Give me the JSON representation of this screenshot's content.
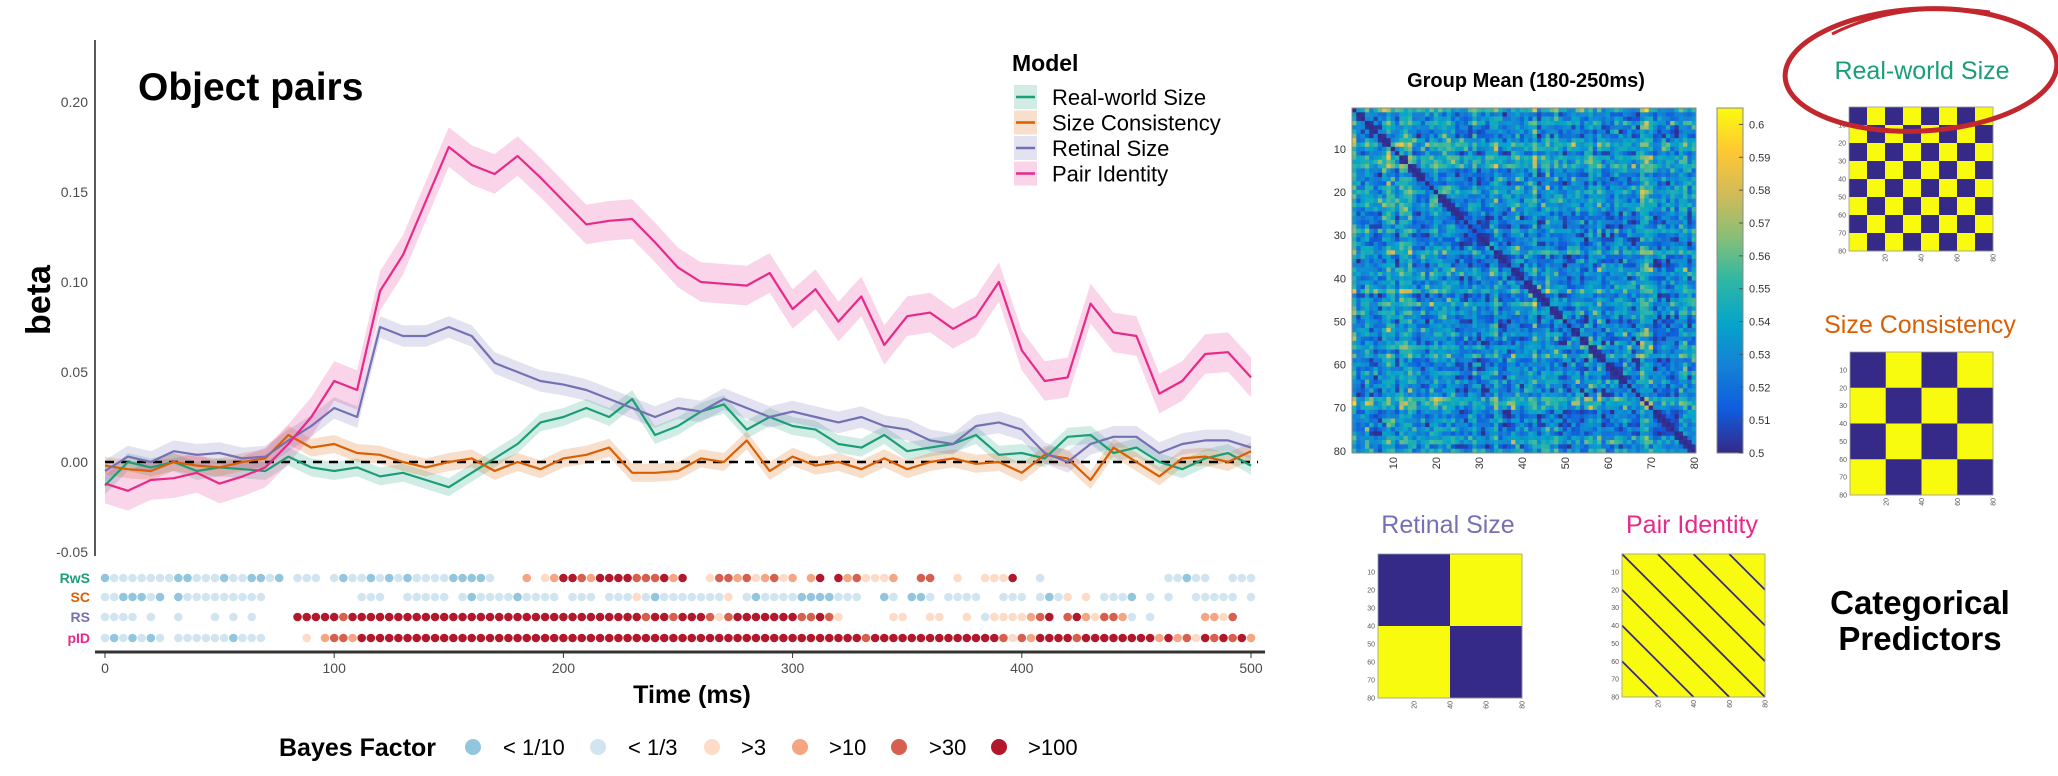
{
  "panel_title": "Object pairs",
  "colors": {
    "Real-world Size": "#1b9e77",
    "Size Consistency": "#d95f02",
    "Retinal Size": "#7570b3",
    "Pair Identity": "#e7298a",
    "highlight_circle": "#c1272d"
  },
  "chart_data": [
    {
      "type": "line",
      "title": "Object pairs",
      "xlabel": "Time (ms)",
      "ylabel": "beta",
      "xlim": [
        0,
        500
      ],
      "ylim": [
        -0.05,
        0.22
      ],
      "xticks": [
        0,
        100,
        200,
        300,
        400,
        500
      ],
      "yticks": [
        -0.05,
        0.0,
        0.05,
        0.1,
        0.15,
        0.2
      ],
      "ytick_labels": [
        "-0.05",
        "0.00",
        "0.05",
        "0.10",
        "0.15",
        "0.20"
      ],
      "reference_line": {
        "y": 0,
        "style": "dashed"
      },
      "legend": {
        "title": "Model",
        "placement": "top-right"
      },
      "x": [
        0,
        10,
        20,
        30,
        40,
        50,
        60,
        70,
        80,
        90,
        100,
        110,
        120,
        130,
        140,
        150,
        160,
        170,
        180,
        190,
        200,
        210,
        220,
        230,
        240,
        250,
        260,
        270,
        280,
        290,
        300,
        310,
        320,
        330,
        340,
        350,
        360,
        370,
        380,
        390,
        400,
        410,
        420,
        430,
        440,
        450,
        460,
        470,
        480,
        490,
        500
      ],
      "series": [
        {
          "name": "Real-world Size",
          "abbr": "RwS",
          "color": "#1b9e77",
          "se": 0.005,
          "values": [
            -0.013,
            0.0,
            -0.003,
            0.0,
            -0.005,
            -0.003,
            -0.004,
            -0.005,
            0.003,
            -0.003,
            -0.005,
            -0.003,
            -0.008,
            -0.006,
            -0.01,
            -0.014,
            -0.006,
            0.002,
            0.01,
            0.022,
            0.025,
            0.03,
            0.025,
            0.035,
            0.015,
            0.02,
            0.028,
            0.032,
            0.018,
            0.025,
            0.02,
            0.018,
            0.01,
            0.008,
            0.015,
            0.006,
            0.008,
            0.01,
            0.015,
            0.004,
            0.005,
            0.002,
            0.014,
            0.015,
            0.005,
            0.008,
            0.0,
            -0.004,
            0.002,
            0.005,
            -0.002
          ]
        },
        {
          "name": "Size Consistency",
          "abbr": "SC",
          "color": "#d95f02",
          "se": 0.005,
          "values": [
            -0.002,
            -0.004,
            -0.005,
            0.0,
            -0.002,
            -0.003,
            0.0,
            0.002,
            0.015,
            0.008,
            0.01,
            0.005,
            0.004,
            0.0,
            -0.003,
            0.0,
            0.002,
            -0.005,
            0.0,
            -0.004,
            0.002,
            0.004,
            0.008,
            -0.006,
            -0.006,
            -0.005,
            0.002,
            0.0,
            0.012,
            -0.005,
            0.003,
            -0.002,
            0.0,
            -0.004,
            0.002,
            -0.004,
            0.0,
            0.002,
            -0.001,
            0.0,
            -0.006,
            0.004,
            0.002,
            -0.01,
            0.008,
            0.0,
            -0.008,
            0.002,
            0.003,
            0.0,
            0.006
          ]
        },
        {
          "name": "Retinal Size",
          "abbr": "RS",
          "color": "#7570b3",
          "se": 0.006,
          "values": [
            -0.005,
            0.003,
            0.0,
            0.006,
            0.004,
            0.005,
            0.002,
            0.003,
            0.012,
            0.02,
            0.03,
            0.025,
            0.075,
            0.07,
            0.07,
            0.075,
            0.07,
            0.055,
            0.05,
            0.045,
            0.043,
            0.04,
            0.035,
            0.03,
            0.025,
            0.03,
            0.028,
            0.035,
            0.03,
            0.025,
            0.028,
            0.025,
            0.022,
            0.025,
            0.02,
            0.018,
            0.012,
            0.01,
            0.02,
            0.022,
            0.018,
            0.005,
            0.0,
            0.01,
            0.014,
            0.014,
            0.005,
            0.01,
            0.012,
            0.012,
            0.008
          ]
        },
        {
          "name": "Pair Identity",
          "abbr": "pID",
          "color": "#e7298a",
          "se": 0.011,
          "values": [
            -0.012,
            -0.016,
            -0.01,
            -0.009,
            -0.006,
            -0.012,
            -0.008,
            -0.003,
            0.01,
            0.025,
            0.045,
            0.04,
            0.095,
            0.115,
            0.145,
            0.175,
            0.165,
            0.16,
            0.17,
            0.158,
            0.145,
            0.132,
            0.134,
            0.135,
            0.122,
            0.108,
            0.1,
            0.099,
            0.098,
            0.105,
            0.085,
            0.096,
            0.078,
            0.092,
            0.065,
            0.081,
            0.083,
            0.074,
            0.081,
            0.1,
            0.062,
            0.045,
            0.047,
            0.088,
            0.072,
            0.07,
            0.038,
            0.045,
            0.06,
            0.061,
            0.047
          ]
        }
      ]
    },
    {
      "type": "bayes_factor_dots",
      "legend_title": "Bayes Factor",
      "categories": [
        "< 1/10",
        "< 1/3",
        ">3",
        ">10",
        ">30",
        ">100"
      ],
      "category_colors": [
        "#92c5de",
        "#d1e5f0",
        "#fddbc7",
        "#f4a582",
        "#d6604d",
        "#b2182b"
      ],
      "time_step_ms": 4,
      "rows": [
        {
          "label": "RwS",
          "color": "#1b9e77",
          "category_index": [
            0,
            1,
            1,
            1,
            1,
            1,
            1,
            1,
            0,
            0,
            1,
            1,
            1,
            0,
            1,
            1,
            0,
            0,
            1,
            0,
            null,
            1,
            1,
            1,
            null,
            1,
            0,
            1,
            1,
            0,
            1,
            0,
            1,
            0,
            1,
            1,
            1,
            1,
            0,
            0,
            0,
            0,
            1,
            null,
            null,
            null,
            3,
            null,
            2,
            3,
            5,
            5,
            4,
            3,
            5,
            5,
            5,
            5,
            4,
            4,
            4,
            5,
            3,
            5,
            null,
            null,
            2,
            4,
            4,
            3,
            4,
            2,
            3,
            4,
            2,
            3,
            null,
            3,
            5,
            null,
            5,
            3,
            4,
            2,
            2,
            2,
            3,
            null,
            null,
            4,
            4,
            null,
            null,
            2,
            null,
            null,
            2,
            2,
            2,
            5,
            null,
            null,
            1,
            null,
            null,
            null,
            null,
            null,
            null,
            null,
            null,
            null,
            null,
            null,
            null,
            null,
            1,
            1,
            0,
            1,
            1,
            null,
            null,
            1,
            1,
            1
          ]
        },
        {
          "label": "SC",
          "color": "#d95f02",
          "category_index": [
            1,
            1,
            0,
            0,
            0,
            1,
            0,
            null,
            0,
            1,
            1,
            1,
            1,
            1,
            1,
            1,
            1,
            1,
            null,
            null,
            null,
            null,
            null,
            null,
            null,
            null,
            null,
            null,
            1,
            1,
            1,
            null,
            null,
            1,
            1,
            1,
            1,
            1,
            null,
            1,
            0,
            1,
            1,
            1,
            1,
            0,
            1,
            1,
            1,
            1,
            null,
            1,
            1,
            1,
            null,
            1,
            1,
            1,
            2,
            1,
            0,
            1,
            1,
            1,
            1,
            1,
            1,
            1,
            2,
            null,
            1,
            0,
            1,
            1,
            1,
            1,
            0,
            0,
            0,
            0,
            1,
            1,
            1,
            null,
            null,
            0,
            1,
            null,
            0,
            0,
            1,
            null,
            1,
            1,
            1,
            1,
            null,
            null,
            1,
            1,
            1,
            null,
            1,
            0,
            1,
            2,
            null,
            2,
            null,
            1,
            1,
            1,
            0,
            null,
            1,
            null,
            1,
            null,
            null,
            1,
            1,
            1,
            1,
            1,
            null,
            1
          ]
        },
        {
          "label": "RS",
          "color": "#7570b3",
          "category_index": [
            1,
            1,
            1,
            1,
            null,
            1,
            null,
            null,
            1,
            null,
            null,
            null,
            1,
            null,
            1,
            null,
            1,
            null,
            null,
            null,
            null,
            5,
            5,
            5,
            5,
            5,
            4,
            5,
            5,
            5,
            5,
            5,
            5,
            5,
            5,
            5,
            5,
            5,
            5,
            5,
            5,
            5,
            5,
            5,
            5,
            5,
            5,
            5,
            5,
            5,
            5,
            5,
            5,
            5,
            5,
            5,
            5,
            5,
            5,
            4,
            5,
            5,
            4,
            5,
            5,
            5,
            4,
            2,
            4,
            5,
            5,
            5,
            5,
            5,
            5,
            5,
            4,
            4,
            5,
            4,
            2,
            null,
            null,
            null,
            null,
            null,
            2,
            2,
            null,
            null,
            2,
            2,
            null,
            null,
            2,
            null,
            1,
            2,
            2,
            2,
            2,
            3,
            4,
            5,
            null,
            4,
            5,
            3,
            2,
            4,
            4,
            3,
            1,
            null,
            1,
            null,
            null,
            null,
            null,
            null,
            3,
            3,
            2,
            4,
            null,
            null
          ]
        },
        {
          "label": "pID",
          "color": "#e7298a",
          "category_index": [
            1,
            0,
            1,
            0,
            1,
            0,
            1,
            null,
            1,
            1,
            1,
            1,
            1,
            1,
            0,
            1,
            1,
            1,
            null,
            null,
            null,
            null,
            2,
            null,
            3,
            4,
            4,
            3,
            5,
            5,
            5,
            5,
            5,
            5,
            5,
            5,
            5,
            5,
            5,
            5,
            5,
            5,
            5,
            5,
            5,
            5,
            5,
            5,
            5,
            5,
            5,
            5,
            5,
            5,
            5,
            5,
            5,
            5,
            5,
            5,
            5,
            5,
            5,
            5,
            5,
            5,
            5,
            5,
            5,
            5,
            5,
            5,
            5,
            5,
            5,
            5,
            5,
            5,
            5,
            5,
            5,
            5,
            5,
            4,
            5,
            5,
            5,
            5,
            5,
            5,
            5,
            5,
            5,
            5,
            5,
            5,
            5,
            5,
            4,
            2,
            4,
            3,
            5,
            5,
            5,
            5,
            4,
            5,
            5,
            5,
            5,
            5,
            5,
            5,
            5,
            3,
            5,
            3,
            4,
            2,
            5,
            4,
            5,
            4,
            5,
            3
          ]
        }
      ]
    },
    {
      "type": "heatmap",
      "title": "Group Mean (180-250ms)",
      "size": 80,
      "ticks": [
        10,
        20,
        30,
        40,
        50,
        60,
        70,
        80
      ],
      "colormap": "parula",
      "colorbar": {
        "range": [
          0.5,
          0.605
        ],
        "ticks": [
          "0.5",
          "0.51",
          "0.52",
          "0.53",
          "0.54",
          "0.55",
          "0.56",
          "0.57",
          "0.58",
          "0.59",
          "0.6"
        ]
      }
    }
  ],
  "predictors": {
    "heading_line1": "Categorical",
    "heading_line2": "Predictors",
    "low_color": "#352a87",
    "high_color": "#f9fb0e",
    "yticks": [
      10,
      20,
      30,
      40,
      50,
      60,
      70,
      80
    ],
    "xticks": [
      20,
      40,
      60,
      80
    ],
    "items": [
      {
        "name": "Real-world Size",
        "color": "#1b9e77",
        "pattern": "checker",
        "block": 10,
        "highlighted": true
      },
      {
        "name": "Size Consistency",
        "color": "#d95f02",
        "pattern": "checker",
        "block": 20
      },
      {
        "name": "Retinal Size",
        "color": "#7570b3",
        "pattern": "checker",
        "block": 40
      },
      {
        "name": "Pair Identity",
        "color": "#e7298a",
        "pattern": "diagonal",
        "block": 20
      }
    ]
  }
}
